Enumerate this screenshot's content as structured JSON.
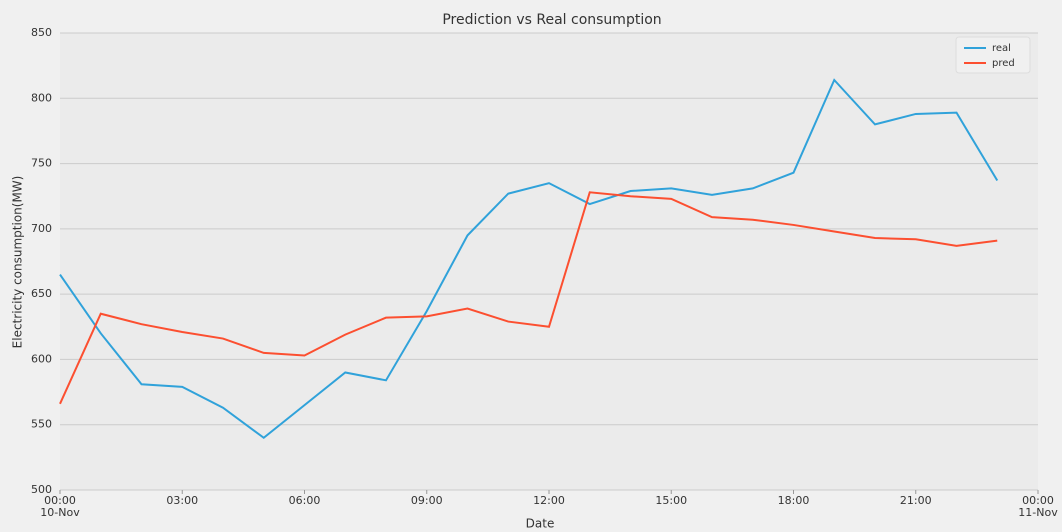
{
  "chart_data": {
    "type": "line",
    "title": "Prediction vs Real consumption",
    "xlabel": "Date",
    "ylabel": "Electricity consumption(MW)",
    "x": [
      0,
      1,
      2,
      3,
      4,
      5,
      6,
      7,
      8,
      9,
      10,
      11,
      12,
      13,
      14,
      15,
      16,
      17,
      18,
      19,
      20,
      21,
      22,
      23
    ],
    "series": [
      {
        "name": "real",
        "color": "#30a2da",
        "values": [
          665,
          620,
          581,
          579,
          563,
          540,
          565,
          590,
          584,
          637,
          695,
          727,
          735,
          719,
          729,
          731,
          726,
          731,
          743,
          814,
          780,
          788,
          789,
          737
        ]
      },
      {
        "name": "pred",
        "color": "#fc4f30",
        "values": [
          566,
          635,
          627,
          621,
          616,
          605,
          603,
          619,
          632,
          633,
          639,
          629,
          625,
          728,
          725,
          723,
          709,
          707,
          703,
          698,
          693,
          692,
          687,
          691
        ]
      }
    ],
    "xlim": [
      0,
      24
    ],
    "xticks": [
      {
        "value": 0,
        "label": "00:00\n10-Nov"
      },
      {
        "value": 3,
        "label": "03:00"
      },
      {
        "value": 6,
        "label": "06:00"
      },
      {
        "value": 9,
        "label": "09:00"
      },
      {
        "value": 12,
        "label": "12:00"
      },
      {
        "value": 15,
        "label": "15:00"
      },
      {
        "value": 18,
        "label": "18:00"
      },
      {
        "value": 21,
        "label": "21:00"
      },
      {
        "value": 24,
        "label": "00:00\n11-Nov"
      }
    ],
    "ylim": [
      500,
      850
    ],
    "yticks": [
      500,
      550,
      600,
      650,
      700,
      750,
      800,
      850
    ],
    "grid": "y",
    "legend": "upper right"
  }
}
